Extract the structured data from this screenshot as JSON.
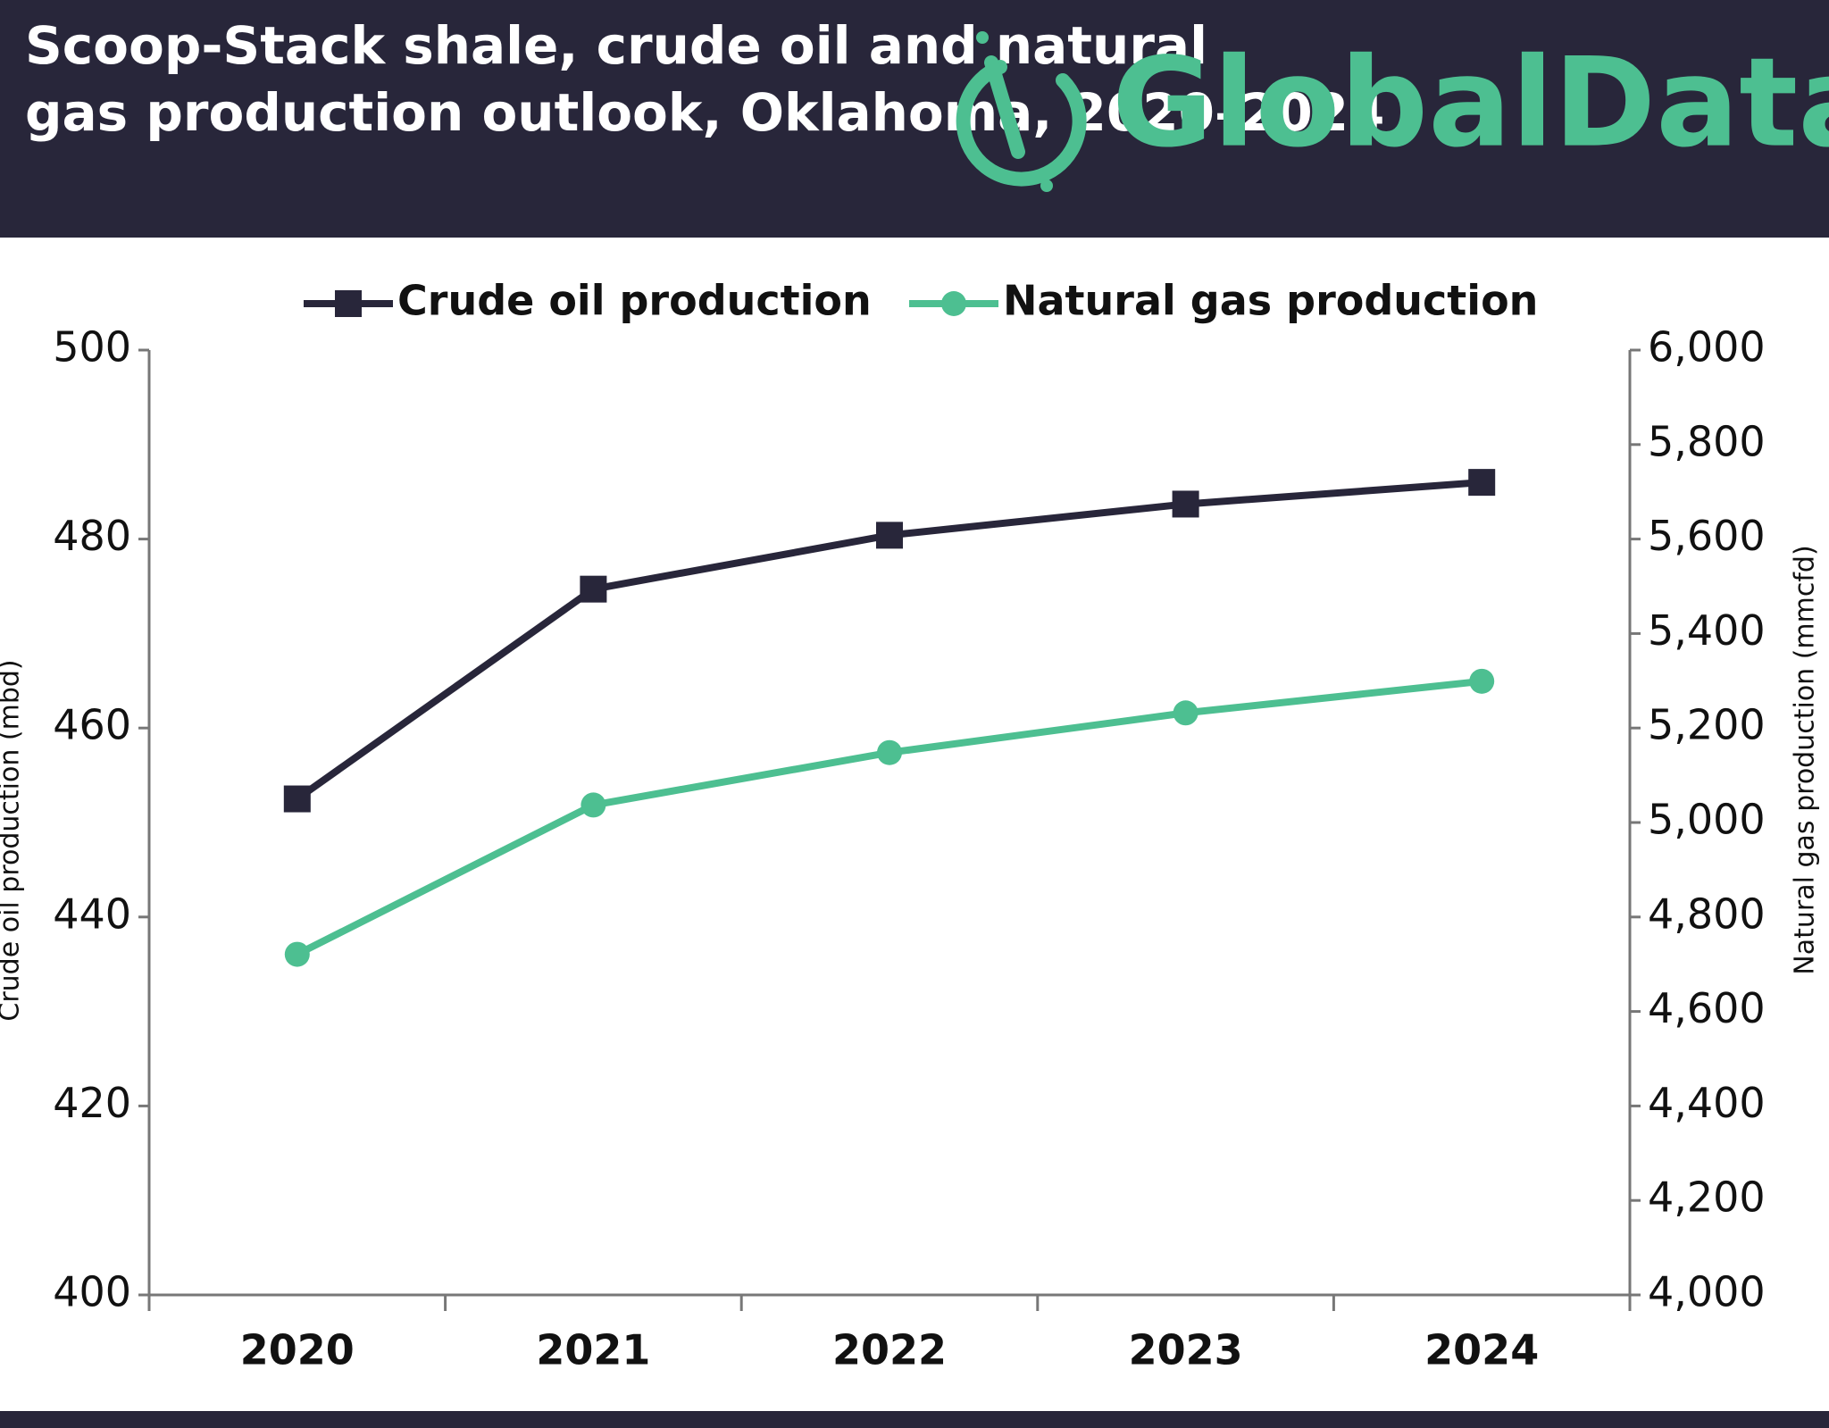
{
  "chart_data": {
    "type": "line",
    "title": "Scoop-Stack shale, crude oil and natural gas production outlook, Oklahoma, 2020–2024",
    "brand": "GlobalData.",
    "categories": [
      "2020",
      "2021",
      "2022",
      "2023",
      "2024"
    ],
    "series": [
      {
        "name": "Crude oil production",
        "color": "#28263a",
        "marker": "square",
        "values": [
          452.5,
          474.7,
          480.4,
          483.7,
          486.0
        ]
      },
      {
        "name": "Natural gas production",
        "color": "#4dbf91",
        "marker": "circle",
        "axis": "y2",
        "values": [
          4721,
          5037,
          5148,
          5232,
          5299
        ]
      }
    ],
    "ylabel": "Crude oil production (mbd)",
    "y2label": "Natural gas production (mmcfd)",
    "ylim": [
      400,
      500
    ],
    "yticks": [
      400,
      420,
      440,
      460,
      480,
      500
    ],
    "y2lim": [
      4000,
      6000
    ],
    "y2ticks": [
      {
        "value": 4000,
        "label": "4,000"
      },
      {
        "value": 4200,
        "label": "4,200"
      },
      {
        "value": 4400,
        "label": "4,400"
      },
      {
        "value": 4600,
        "label": "4,600"
      },
      {
        "value": 4800,
        "label": "4,800"
      },
      {
        "value": 5000,
        "label": "5,000"
      },
      {
        "value": 5200,
        "label": "5,200"
      },
      {
        "value": 5400,
        "label": "5,400"
      },
      {
        "value": 5600,
        "label": "5,600"
      },
      {
        "value": 5800,
        "label": "5,800"
      },
      {
        "value": 6000,
        "label": "6,000"
      }
    ],
    "legend": "top",
    "grid": false
  }
}
